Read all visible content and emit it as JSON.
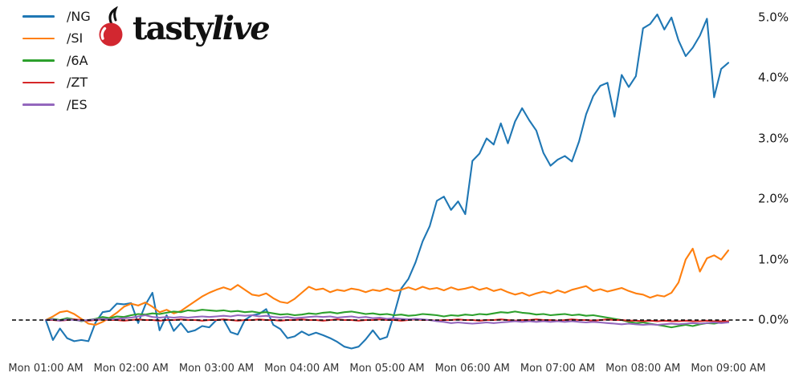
{
  "brand": {
    "logo_text_regular": "tasty",
    "logo_text_italic": "live",
    "cherry_color": "#d22730",
    "text_color": "#111111"
  },
  "legend": {
    "items": [
      {
        "label": "/NG",
        "color": "#1f77b4"
      },
      {
        "label": "/SI",
        "color": "#ff7f0e"
      },
      {
        "label": "/6A",
        "color": "#2ca02c"
      },
      {
        "label": "/ZT",
        "color": "#d62728"
      },
      {
        "label": "/ES",
        "color": "#9467bd"
      }
    ]
  },
  "chart_data": {
    "type": "line",
    "title": "",
    "xlabel": "",
    "ylabel": "",
    "grid": false,
    "legend_position": "upper-left",
    "x_axis": {
      "tick_labels": [
        "Mon 01:00 AM",
        "Mon 02:00 AM",
        "Mon 03:00 AM",
        "Mon 04:00 AM",
        "Mon 05:00 AM",
        "Mon 06:00 AM",
        "Mon 07:00 AM",
        "Mon 08:00 AM",
        "Mon 09:00 AM"
      ],
      "tick_hours": [
        1,
        2,
        3,
        4,
        5,
        6,
        7,
        8,
        9
      ]
    },
    "y_axis": {
      "side": "right",
      "tick_labels": [
        "0.0%",
        "1.0%",
        "2.0%",
        "3.0%",
        "4.0%",
        "5.0%"
      ],
      "tick_values": [
        0,
        1,
        2,
        3,
        4,
        5
      ],
      "unit": "percent"
    },
    "zero_line": {
      "value": 0,
      "style": "dashed",
      "color": "#000000"
    },
    "x_start_hour": 1,
    "x_step_minutes": 5,
    "series": [
      {
        "name": "/NG",
        "color": "#1f77b4",
        "values": [
          0.0,
          -0.33,
          -0.14,
          -0.3,
          -0.35,
          -0.33,
          -0.35,
          -0.04,
          0.13,
          0.15,
          0.27,
          0.26,
          0.28,
          -0.05,
          0.25,
          0.45,
          -0.17,
          0.08,
          -0.18,
          -0.05,
          -0.2,
          -0.17,
          -0.1,
          -0.12,
          0.0,
          0.01,
          -0.2,
          -0.24,
          0.0,
          0.08,
          0.1,
          0.18,
          -0.08,
          -0.15,
          -0.3,
          -0.27,
          -0.19,
          -0.25,
          -0.21,
          -0.25,
          -0.3,
          -0.36,
          -0.44,
          -0.47,
          -0.44,
          -0.32,
          -0.17,
          -0.32,
          -0.28,
          0.1,
          0.52,
          0.68,
          0.95,
          1.3,
          1.55,
          1.97,
          2.04,
          1.82,
          1.96,
          1.75,
          2.63,
          2.75,
          3.0,
          2.9,
          3.25,
          2.92,
          3.28,
          3.5,
          3.3,
          3.13,
          2.76,
          2.55,
          2.65,
          2.71,
          2.62,
          2.95,
          3.4,
          3.7,
          3.87,
          3.92,
          3.36,
          4.05,
          3.85,
          4.03,
          4.82,
          4.89,
          5.05,
          4.8,
          5.0,
          4.62,
          4.36,
          4.5,
          4.7,
          4.98,
          3.68,
          4.15,
          4.25
        ]
      },
      {
        "name": "/SI",
        "color": "#ff7f0e",
        "values": [
          0.0,
          0.06,
          0.13,
          0.15,
          0.1,
          0.02,
          -0.06,
          -0.08,
          -0.03,
          0.04,
          0.12,
          0.22,
          0.27,
          0.24,
          0.29,
          0.22,
          0.13,
          0.17,
          0.11,
          0.15,
          0.23,
          0.31,
          0.39,
          0.45,
          0.5,
          0.54,
          0.5,
          0.58,
          0.5,
          0.42,
          0.4,
          0.44,
          0.36,
          0.3,
          0.28,
          0.35,
          0.45,
          0.55,
          0.5,
          0.52,
          0.46,
          0.5,
          0.48,
          0.52,
          0.5,
          0.46,
          0.5,
          0.48,
          0.52,
          0.48,
          0.5,
          0.54,
          0.5,
          0.55,
          0.51,
          0.53,
          0.49,
          0.54,
          0.5,
          0.52,
          0.55,
          0.5,
          0.53,
          0.48,
          0.51,
          0.46,
          0.42,
          0.45,
          0.4,
          0.44,
          0.47,
          0.44,
          0.49,
          0.45,
          0.5,
          0.53,
          0.56,
          0.48,
          0.51,
          0.47,
          0.5,
          0.53,
          0.48,
          0.44,
          0.42,
          0.37,
          0.41,
          0.39,
          0.45,
          0.62,
          1.0,
          1.18,
          0.8,
          1.02,
          1.07,
          1.0,
          1.15
        ]
      },
      {
        "name": "/6A",
        "color": "#2ca02c",
        "values": [
          0.0,
          0.02,
          0.0,
          0.03,
          0.01,
          -0.02,
          0.0,
          0.02,
          0.05,
          0.03,
          0.06,
          0.05,
          0.08,
          0.1,
          0.09,
          0.11,
          0.1,
          0.12,
          0.14,
          0.13,
          0.16,
          0.15,
          0.17,
          0.16,
          0.15,
          0.16,
          0.14,
          0.15,
          0.13,
          0.14,
          0.12,
          0.13,
          0.11,
          0.09,
          0.1,
          0.08,
          0.09,
          0.11,
          0.1,
          0.12,
          0.13,
          0.11,
          0.13,
          0.14,
          0.12,
          0.1,
          0.11,
          0.09,
          0.1,
          0.08,
          0.09,
          0.07,
          0.08,
          0.1,
          0.09,
          0.08,
          0.06,
          0.08,
          0.07,
          0.09,
          0.08,
          0.1,
          0.09,
          0.11,
          0.13,
          0.12,
          0.14,
          0.12,
          0.11,
          0.09,
          0.1,
          0.08,
          0.09,
          0.1,
          0.08,
          0.09,
          0.07,
          0.08,
          0.06,
          0.04,
          0.02,
          0.0,
          -0.03,
          -0.05,
          -0.04,
          -0.06,
          -0.08,
          -0.1,
          -0.12,
          -0.1,
          -0.08,
          -0.1,
          -0.07,
          -0.05,
          -0.06,
          -0.04,
          -0.04
        ]
      },
      {
        "name": "/ZT",
        "color": "#d62728",
        "values": [
          0.0,
          0.0,
          -0.01,
          0.0,
          0.01,
          0.0,
          -0.01,
          0.0,
          0.01,
          0.0,
          0.0,
          -0.01,
          0.0,
          0.01,
          0.0,
          0.0,
          -0.01,
          0.0,
          0.0,
          0.01,
          0.0,
          0.0,
          -0.01,
          0.0,
          0.0,
          0.01,
          0.0,
          -0.01,
          0.0,
          0.0,
          0.01,
          0.0,
          0.0,
          -0.01,
          0.0,
          0.0,
          0.01,
          0.0,
          0.0,
          -0.01,
          0.0,
          0.01,
          0.0,
          0.0,
          -0.01,
          0.0,
          0.0,
          0.01,
          0.0,
          0.0,
          -0.01,
          0.0,
          0.01,
          0.0,
          0.0,
          -0.01,
          0.0,
          0.0,
          0.01,
          0.0,
          0.0,
          -0.01,
          0.0,
          0.0,
          0.01,
          0.0,
          -0.01,
          0.0,
          0.0,
          0.01,
          0.0,
          0.0,
          -0.01,
          0.0,
          0.01,
          0.0,
          0.0,
          -0.01,
          0.0,
          0.01,
          0.0,
          0.0,
          -0.01,
          -0.01,
          -0.02,
          -0.01,
          -0.02,
          -0.01,
          -0.02,
          -0.02,
          -0.01,
          -0.02,
          -0.02,
          -0.01,
          -0.02,
          -0.02,
          -0.02
        ]
      },
      {
        "name": "/ES",
        "color": "#9467bd",
        "values": [
          0.0,
          0.01,
          -0.01,
          0.01,
          0.0,
          -0.01,
          0.0,
          0.01,
          0.02,
          0.01,
          0.02,
          0.03,
          0.04,
          0.06,
          0.08,
          0.05,
          0.04,
          0.05,
          0.04,
          0.05,
          0.04,
          0.05,
          0.06,
          0.05,
          0.06,
          0.07,
          0.06,
          0.08,
          0.07,
          0.08,
          0.06,
          0.07,
          0.05,
          0.04,
          0.05,
          0.03,
          0.04,
          0.05,
          0.06,
          0.05,
          0.06,
          0.04,
          0.05,
          0.06,
          0.04,
          0.05,
          0.03,
          0.04,
          0.02,
          0.03,
          0.02,
          0.01,
          0.02,
          0.01,
          0.0,
          -0.02,
          -0.03,
          -0.05,
          -0.04,
          -0.05,
          -0.06,
          -0.05,
          -0.04,
          -0.05,
          -0.04,
          -0.03,
          -0.02,
          -0.03,
          -0.02,
          -0.03,
          -0.02,
          -0.03,
          -0.02,
          -0.03,
          -0.02,
          -0.03,
          -0.04,
          -0.03,
          -0.04,
          -0.05,
          -0.06,
          -0.07,
          -0.06,
          -0.07,
          -0.08,
          -0.07,
          -0.08,
          -0.07,
          -0.06,
          -0.07,
          -0.06,
          -0.05,
          -0.06,
          -0.05,
          -0.04,
          -0.05,
          -0.04
        ]
      }
    ]
  }
}
